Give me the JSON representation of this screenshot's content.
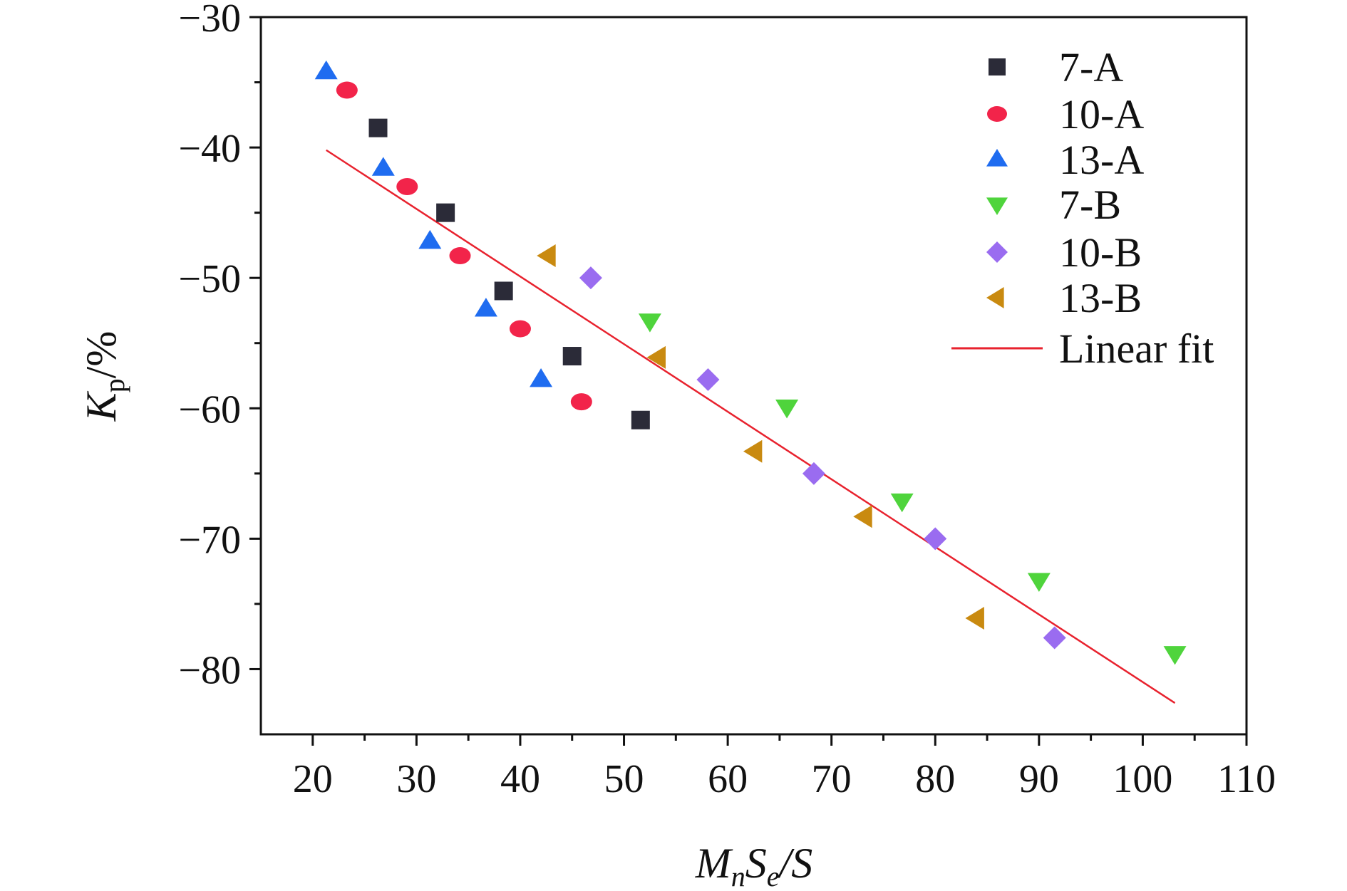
{
  "chart_data": {
    "type": "scatter",
    "xlabel": {
      "main1": "M",
      "sub1": "n",
      "main2": "S",
      "sub2": "e",
      "tail": "/S"
    },
    "ylabel": {
      "main": "K",
      "sub": "p",
      "tail": "/%"
    },
    "xlim": [
      15,
      110
    ],
    "ylim": [
      -85,
      -30
    ],
    "xticks": [
      20,
      30,
      40,
      50,
      60,
      70,
      80,
      90,
      100,
      110
    ],
    "yticks": [
      -30,
      -40,
      -50,
      -60,
      -70,
      -80
    ],
    "xtick_labels": [
      "20",
      "30",
      "40",
      "50",
      "60",
      "70",
      "80",
      "90",
      "100",
      "110"
    ],
    "ytick_labels": [
      "−30",
      "−40",
      "−50",
      "−60",
      "−70",
      "−80"
    ],
    "grid": false,
    "legend_position": "top-right",
    "series": [
      {
        "name": "7-A",
        "marker": "square",
        "color": "#2b2b38",
        "points": [
          [
            26.3,
            -38.5
          ],
          [
            32.8,
            -45.0
          ],
          [
            38.4,
            -51.0
          ],
          [
            45.0,
            -56.0
          ],
          [
            51.6,
            -60.9
          ]
        ]
      },
      {
        "name": "10-A",
        "marker": "circle",
        "color": "#f2244a",
        "points": [
          [
            23.3,
            -35.6
          ],
          [
            29.1,
            -43.0
          ],
          [
            34.2,
            -48.3
          ],
          [
            40.0,
            -53.9
          ],
          [
            45.9,
            -59.5
          ]
        ]
      },
      {
        "name": "13-A",
        "marker": "triangle-up",
        "color": "#1f6cf0",
        "points": [
          [
            21.3,
            -34.2
          ],
          [
            26.8,
            -41.6
          ],
          [
            31.3,
            -47.2
          ],
          [
            36.7,
            -52.4
          ],
          [
            42.0,
            -57.8
          ]
        ]
      },
      {
        "name": "7-B",
        "marker": "triangle-down",
        "color": "#4fd43c",
        "points": [
          [
            52.5,
            -53.3
          ],
          [
            65.7,
            -59.9
          ],
          [
            76.8,
            -67.1
          ],
          [
            90.0,
            -73.2
          ],
          [
            103.1,
            -78.8
          ]
        ]
      },
      {
        "name": "10-B",
        "marker": "diamond",
        "color": "#9a6cf0",
        "points": [
          [
            46.8,
            -50.0
          ],
          [
            58.1,
            -57.8
          ],
          [
            68.3,
            -65.0
          ],
          [
            80.0,
            -70.0
          ],
          [
            91.5,
            -77.6
          ]
        ]
      },
      {
        "name": "13-B",
        "marker": "triangle-left",
        "color": "#c98a10",
        "points": [
          [
            42.7,
            -48.3
          ],
          [
            53.3,
            -56.1
          ],
          [
            62.6,
            -63.3
          ],
          [
            73.2,
            -68.3
          ],
          [
            84.0,
            -76.1
          ]
        ]
      }
    ],
    "fit": {
      "name": "Linear fit",
      "color": "#e8222e",
      "x": [
        21.3,
        103.1
      ],
      "y": [
        -40.2,
        -82.6
      ]
    }
  }
}
